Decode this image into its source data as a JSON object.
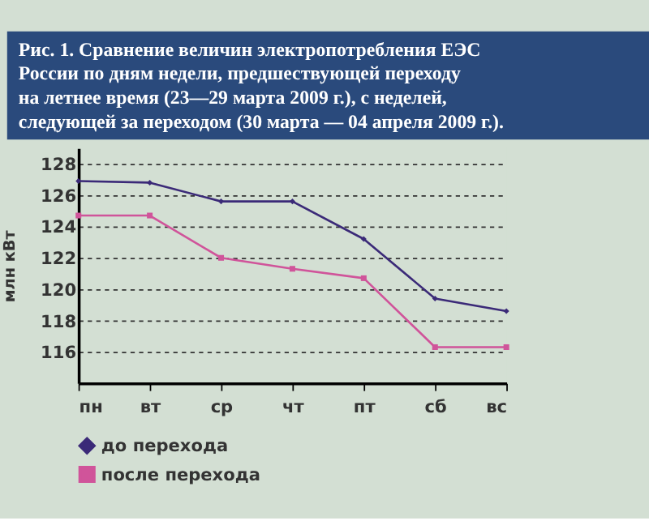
{
  "chart_data": {
    "type": "line",
    "title": "Рис. 1. Сравнение величин электропотребления ЕЭС\nРоссии по дням недели, предшествующей переходу\nна летнее время (23—29 марта 2009 г.), с неделей,\nследующей за переходом (30 марта — 04 апреля 2009 г.).",
    "ylabel": "млн кВт",
    "categories": [
      "пн",
      "вт",
      "ср",
      "чт",
      "пт",
      "сб",
      "вс"
    ],
    "series": [
      {
        "name": "до перехода",
        "color": "#3b2a78",
        "marker": "diamond",
        "values": [
          126.9,
          126.8,
          125.6,
          125.6,
          123.2,
          119.4,
          118.6
        ]
      },
      {
        "name": "после перехода",
        "color": "#d0549a",
        "marker": "square",
        "values": [
          124.7,
          124.7,
          122.0,
          121.3,
          120.7,
          116.3,
          116.3
        ]
      }
    ],
    "ylim": [
      114,
      129
    ],
    "yticks": [
      116,
      118,
      120,
      122,
      124,
      126,
      128
    ],
    "grid": "y",
    "legend": "bottom left",
    "line_style": "solid"
  }
}
